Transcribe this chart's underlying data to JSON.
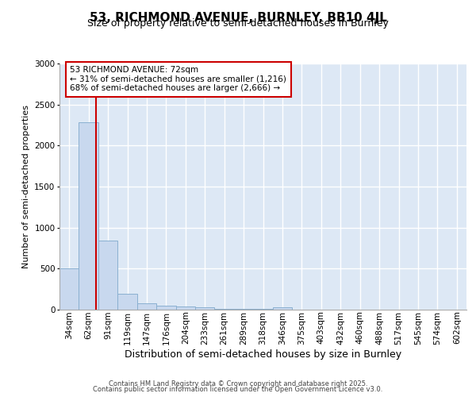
{
  "title_line1": "53, RICHMOND AVENUE, BURNLEY, BB10 4JL",
  "title_line2": "Size of property relative to semi-detached houses in Burnley",
  "xlabel": "Distribution of semi-detached houses by size in Burnley",
  "ylabel": "Number of semi-detached properties",
  "categories": [
    "34sqm",
    "62sqm",
    "91sqm",
    "119sqm",
    "147sqm",
    "176sqm",
    "204sqm",
    "233sqm",
    "261sqm",
    "289sqm",
    "318sqm",
    "346sqm",
    "375sqm",
    "403sqm",
    "432sqm",
    "460sqm",
    "488sqm",
    "517sqm",
    "545sqm",
    "574sqm",
    "602sqm"
  ],
  "values": [
    500,
    2280,
    840,
    195,
    80,
    50,
    35,
    25,
    5,
    5,
    5,
    30,
    0,
    0,
    0,
    0,
    0,
    0,
    0,
    0,
    0
  ],
  "bar_color": "#c8d8ee",
  "bar_edge_color": "#8ab0d0",
  "vline_color": "#cc0000",
  "property_line_label": "53 RICHMOND AVENUE: 72sqm",
  "annotation_line1": "← 31% of semi-detached houses are smaller (1,216)",
  "annotation_line2": "68% of semi-detached houses are larger (2,666) →",
  "annotation_box_facecolor": "#ffffff",
  "annotation_box_edgecolor": "#cc0000",
  "ylim": [
    0,
    3000
  ],
  "yticks": [
    0,
    500,
    1000,
    1500,
    2000,
    2500,
    3000
  ],
  "fig_bg_color": "#ffffff",
  "plot_bg_color": "#dde8f5",
  "grid_color": "#ffffff",
  "footer_line1": "Contains HM Land Registry data © Crown copyright and database right 2025.",
  "footer_line2": "Contains public sector information licensed under the Open Government Licence v3.0.",
  "title1_fontsize": 11,
  "title2_fontsize": 9,
  "footer_fontsize": 6,
  "xlabel_fontsize": 9,
  "ylabel_fontsize": 8,
  "tick_fontsize": 7.5,
  "annot_fontsize": 7.5
}
